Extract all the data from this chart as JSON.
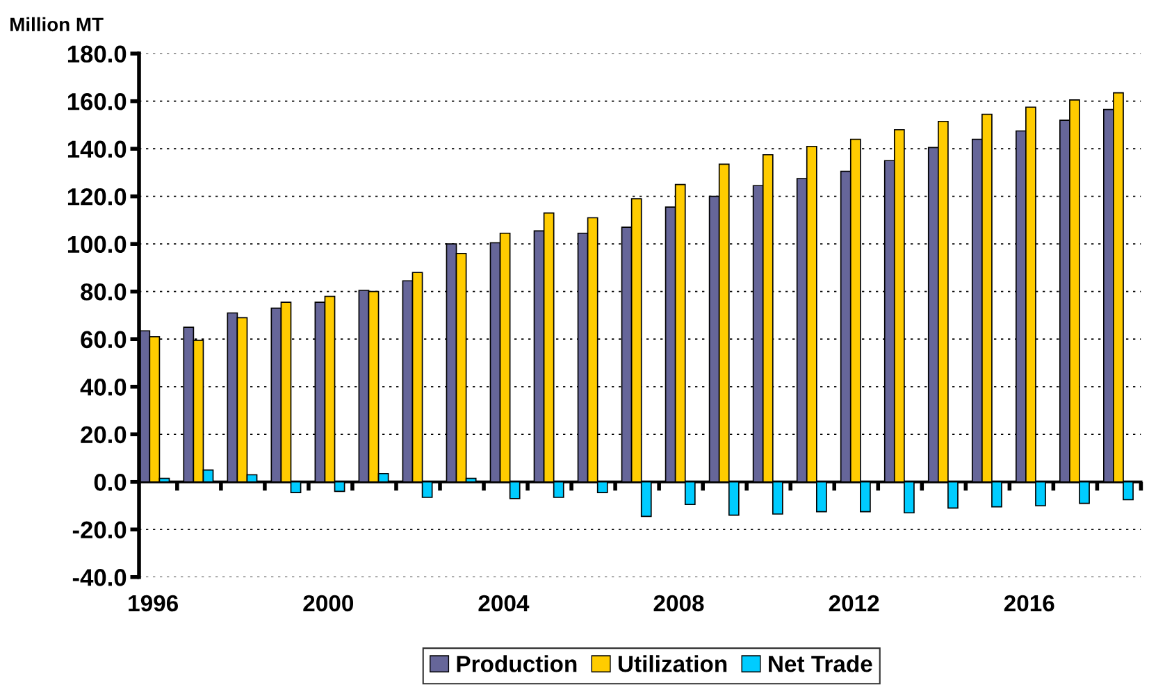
{
  "chart_data": {
    "type": "bar",
    "ylabel": "Million MT",
    "categories": [
      "1996",
      null,
      null,
      null,
      "2000",
      null,
      null,
      null,
      "2004",
      null,
      null,
      null,
      "2008",
      null,
      null,
      null,
      "2012",
      null,
      null,
      null,
      "2016",
      null,
      null
    ],
    "series": [
      {
        "name": "Production",
        "color": "#666699",
        "values": [
          63.5,
          65,
          71,
          73,
          75.5,
          80.5,
          84.5,
          100,
          100.5,
          105.5,
          104.5,
          107,
          115.5,
          120,
          124.5,
          127.5,
          130.5,
          135,
          140.5,
          144,
          147.5,
          152,
          156.5
        ]
      },
      {
        "name": "Utilization",
        "color": "#ffcc00",
        "values": [
          61,
          59.5,
          69,
          75.5,
          78,
          80,
          88,
          96,
          104.5,
          113,
          111,
          119,
          125,
          133.5,
          137.5,
          141,
          144,
          148,
          151.5,
          154.5,
          157.5,
          160.5,
          163.5
        ]
      },
      {
        "name": "Net Trade",
        "color": "#00ccff",
        "values": [
          1.5,
          5,
          3,
          -4.5,
          -4,
          3.5,
          -6.5,
          1.5,
          -7,
          -6.5,
          -4.5,
          -14.5,
          -9.5,
          -14,
          -13.5,
          -12.5,
          -12.5,
          -13,
          -11,
          -10.5,
          -10,
          -9,
          -7.5
        ]
      }
    ],
    "ylim": [
      -40,
      180
    ],
    "yticks": [
      {
        "value": -40,
        "label": "-40.0"
      },
      {
        "value": -20,
        "label": "-20.0"
      },
      {
        "value": 0,
        "label": "0.0"
      },
      {
        "value": 20,
        "label": "20.0"
      },
      {
        "value": 40,
        "label": "40.0"
      },
      {
        "value": 60,
        "label": "60.0"
      },
      {
        "value": 80,
        "label": "80.0"
      },
      {
        "value": 100,
        "label": "100.0"
      },
      {
        "value": 120,
        "label": "120.0"
      },
      {
        "value": 140,
        "label": "140.0"
      },
      {
        "value": 160,
        "label": "160.0"
      },
      {
        "value": 180,
        "label": "180.0"
      }
    ],
    "grid": "y",
    "legend": "bottom"
  }
}
